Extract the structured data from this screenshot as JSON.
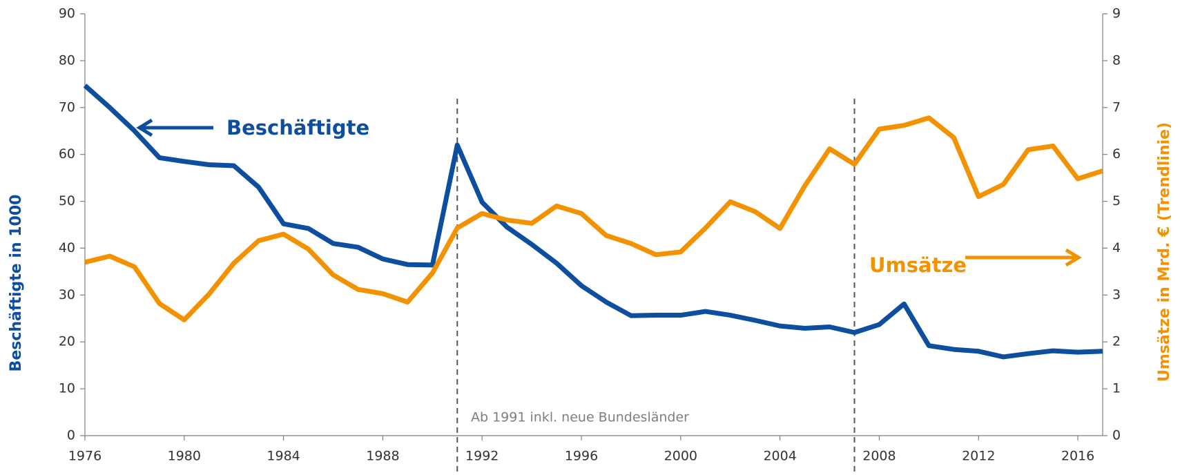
{
  "chart_data": {
    "type": "line",
    "x": [
      1976,
      1977,
      1978,
      1979,
      1980,
      1981,
      1982,
      1983,
      1984,
      1985,
      1986,
      1987,
      1988,
      1989,
      1990,
      1991,
      1992,
      1993,
      1994,
      1995,
      1996,
      1997,
      1998,
      1999,
      2000,
      2001,
      2002,
      2003,
      2004,
      2005,
      2006,
      2007,
      2008,
      2009,
      2010,
      2011,
      2012,
      2013,
      2014,
      2015,
      2016,
      2017
    ],
    "series": [
      {
        "name": "Beschäftigte",
        "color": "#0d4f9e",
        "axis": "y",
        "values": [
          74.7,
          70,
          65,
          59.3,
          58.5,
          57.8,
          57.6,
          53,
          45.2,
          44.2,
          41,
          40.2,
          37.7,
          36.5,
          36.4,
          62,
          49.8,
          44.5,
          40.8,
          36.8,
          32,
          28.5,
          25.6,
          25.7,
          25.7,
          26.5,
          25.7,
          24.6,
          23.4,
          22.9,
          23.2,
          22,
          23.7,
          28.1,
          19.2,
          18.4,
          18,
          16.8,
          17.5,
          18.1,
          17.8,
          18
        ]
      },
      {
        "name": "Umsätze",
        "color": "#f39200",
        "axis": "y2",
        "values": [
          3.7,
          3.83,
          3.6,
          2.82,
          2.47,
          3.02,
          3.68,
          4.16,
          4.3,
          3.98,
          3.43,
          3.12,
          3.03,
          2.85,
          3.47,
          4.43,
          4.74,
          4.6,
          4.53,
          4.9,
          4.74,
          4.27,
          4.1,
          3.86,
          3.92,
          4.43,
          4.99,
          4.78,
          4.42,
          5.33,
          6.12,
          5.79,
          6.54,
          6.62,
          6.78,
          6.36,
          5.1,
          5.36,
          6.1,
          6.18,
          5.48,
          5.65
        ]
      }
    ],
    "xlim": [
      1976,
      2017
    ],
    "xticks": [
      1976,
      1980,
      1984,
      1988,
      1992,
      1996,
      2000,
      2004,
      2008,
      2012,
      2016
    ],
    "ylim": [
      0,
      90
    ],
    "yticks": [
      0,
      10,
      20,
      30,
      40,
      50,
      60,
      70,
      80,
      90
    ],
    "y2lim": [
      0,
      9
    ],
    "y2ticks": [
      0,
      1,
      2,
      3,
      4,
      5,
      6,
      7,
      8,
      9
    ],
    "ylabel": "Beschäftigte in 1000",
    "y2label": "Umsätze in Mrd. € (Trendlinie)",
    "vlines": [
      1991,
      2007
    ],
    "annotation": "Ab 1991 inkl. neue Bundesländer"
  }
}
